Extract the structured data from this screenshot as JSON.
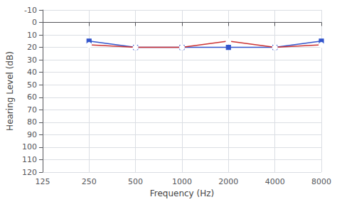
{
  "chart_data": {
    "type": "line",
    "xlabel": "Frequency (Hz)",
    "ylabel": "Hearing Level (dB)",
    "x": [
      250,
      500,
      1000,
      2000,
      4000,
      8000
    ],
    "series": [
      {
        "color": "#3355cc",
        "marker": "square",
        "values": [
          15,
          20,
          20,
          20,
          20,
          15
        ]
      },
      {
        "color": "#cc3333",
        "marker": "circle",
        "values": [
          18,
          20,
          20,
          15,
          20,
          18
        ]
      }
    ],
    "log": "x",
    "xlim": [
      125,
      8000
    ],
    "xticks": [
      125,
      250,
      500,
      1000,
      2000,
      4000,
      8000
    ],
    "ylim": [
      120,
      -10
    ],
    "yticks": [
      -10,
      0,
      10,
      20,
      30,
      40,
      50,
      60,
      70,
      80,
      90,
      100,
      110,
      120
    ],
    "grid": true
  }
}
